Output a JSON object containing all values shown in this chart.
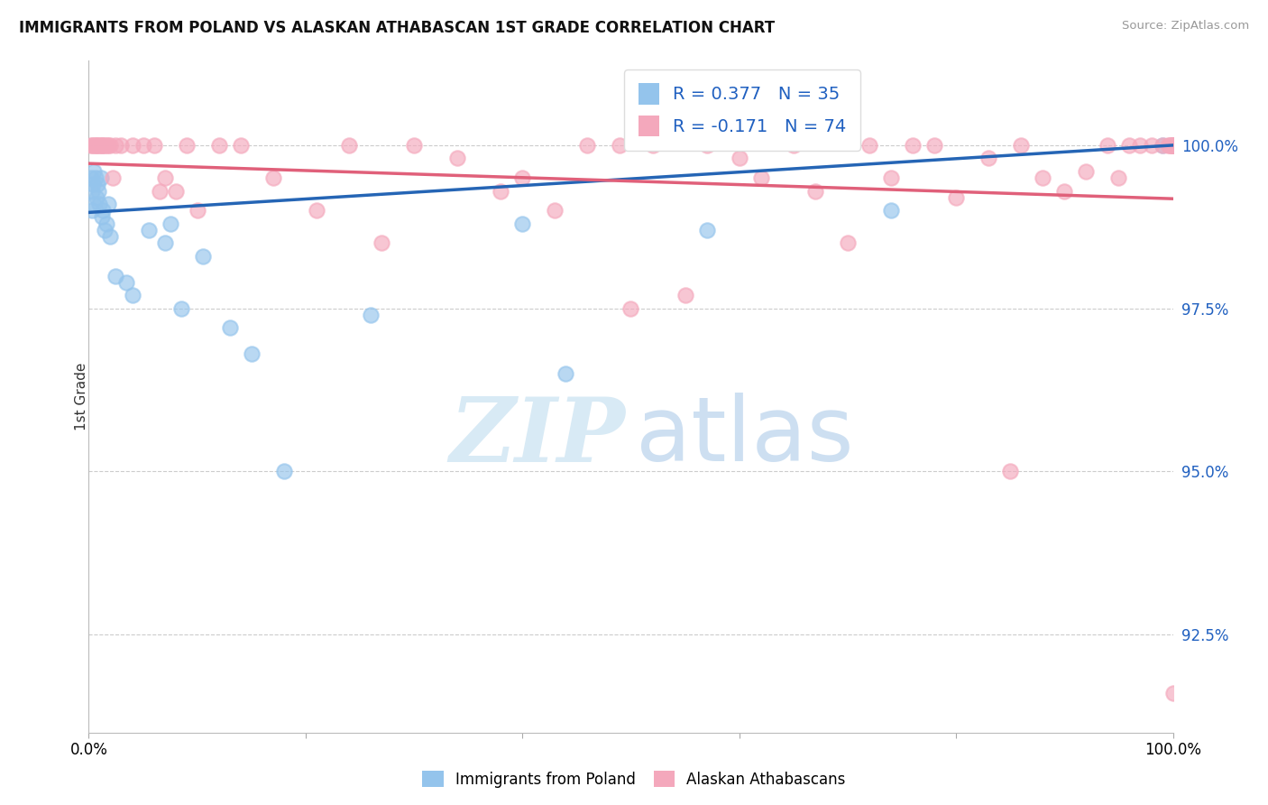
{
  "title": "IMMIGRANTS FROM POLAND VS ALASKAN ATHABASCAN 1ST GRADE CORRELATION CHART",
  "source": "Source: ZipAtlas.com",
  "ylabel": "1st Grade",
  "yticks": [
    92.5,
    95.0,
    97.5,
    100.0
  ],
  "ytick_labels": [
    "92.5%",
    "95.0%",
    "97.5%",
    "100.0%"
  ],
  "xmin": 0.0,
  "xmax": 100.0,
  "ymin": 91.0,
  "ymax": 101.3,
  "blue_label": "Immigrants from Poland",
  "pink_label": "Alaskan Athabascans",
  "blue_R": "0.377",
  "blue_N": "35",
  "pink_R": "-0.171",
  "pink_N": "74",
  "blue_color": "#94C4EC",
  "pink_color": "#F4A8BC",
  "blue_line_color": "#2565B5",
  "pink_line_color": "#E0607A",
  "legend_R_color": "#2060C0",
  "blue_line_start_y": 98.97,
  "blue_line_end_y": 100.0,
  "pink_line_start_y": 99.72,
  "pink_line_end_y": 99.18,
  "blue_x": [
    0.2,
    0.3,
    0.3,
    0.4,
    0.5,
    0.5,
    0.6,
    0.7,
    0.8,
    0.9,
    1.0,
    1.1,
    1.2,
    1.3,
    1.5,
    1.6,
    1.8,
    2.0,
    2.5,
    3.5,
    4.0,
    5.5,
    7.0,
    7.5,
    8.5,
    10.5,
    13.0,
    15.0,
    18.0,
    26.0,
    40.0,
    44.0,
    57.0,
    74.0,
    99.0
  ],
  "blue_y": [
    99.5,
    99.3,
    99.0,
    99.4,
    99.6,
    99.1,
    99.5,
    99.2,
    99.4,
    99.3,
    99.1,
    99.5,
    98.9,
    99.0,
    98.7,
    98.8,
    99.1,
    98.6,
    98.0,
    97.9,
    97.7,
    98.7,
    98.5,
    98.8,
    97.5,
    98.3,
    97.2,
    96.8,
    95.0,
    97.4,
    98.8,
    96.5,
    98.7,
    99.0,
    100.0
  ],
  "pink_x": [
    0.2,
    0.3,
    0.5,
    0.6,
    0.7,
    0.8,
    1.0,
    1.1,
    1.2,
    1.3,
    1.5,
    1.6,
    1.8,
    2.0,
    2.2,
    2.5,
    3.0,
    4.0,
    5.0,
    6.0,
    6.5,
    7.0,
    8.0,
    9.0,
    10.0,
    12.0,
    14.0,
    17.0,
    21.0,
    24.0,
    27.0,
    30.0,
    34.0,
    38.0,
    40.0,
    43.0,
    46.0,
    49.0,
    50.0,
    52.0,
    55.0,
    57.0,
    60.0,
    62.0,
    65.0,
    67.0,
    70.0,
    72.0,
    74.0,
    76.0,
    78.0,
    80.0,
    83.0,
    85.0,
    86.0,
    88.0,
    90.0,
    92.0,
    94.0,
    95.0,
    96.0,
    97.0,
    98.0,
    99.0,
    99.5,
    99.7,
    99.8,
    99.9,
    100.0,
    100.0,
    100.0,
    100.0,
    100.0,
    100.0
  ],
  "pink_y": [
    100.0,
    100.0,
    100.0,
    100.0,
    100.0,
    100.0,
    100.0,
    100.0,
    100.0,
    100.0,
    100.0,
    100.0,
    100.0,
    100.0,
    99.5,
    100.0,
    100.0,
    100.0,
    100.0,
    100.0,
    99.3,
    99.5,
    99.3,
    100.0,
    99.0,
    100.0,
    100.0,
    99.5,
    99.0,
    100.0,
    98.5,
    100.0,
    99.8,
    99.3,
    99.5,
    99.0,
    100.0,
    100.0,
    97.5,
    100.0,
    97.7,
    100.0,
    99.8,
    99.5,
    100.0,
    99.3,
    98.5,
    100.0,
    99.5,
    100.0,
    100.0,
    99.2,
    99.8,
    95.0,
    100.0,
    99.5,
    99.3,
    99.6,
    100.0,
    99.5,
    100.0,
    100.0,
    100.0,
    100.0,
    100.0,
    100.0,
    100.0,
    100.0,
    100.0,
    100.0,
    100.0,
    100.0,
    91.6,
    100.0
  ]
}
